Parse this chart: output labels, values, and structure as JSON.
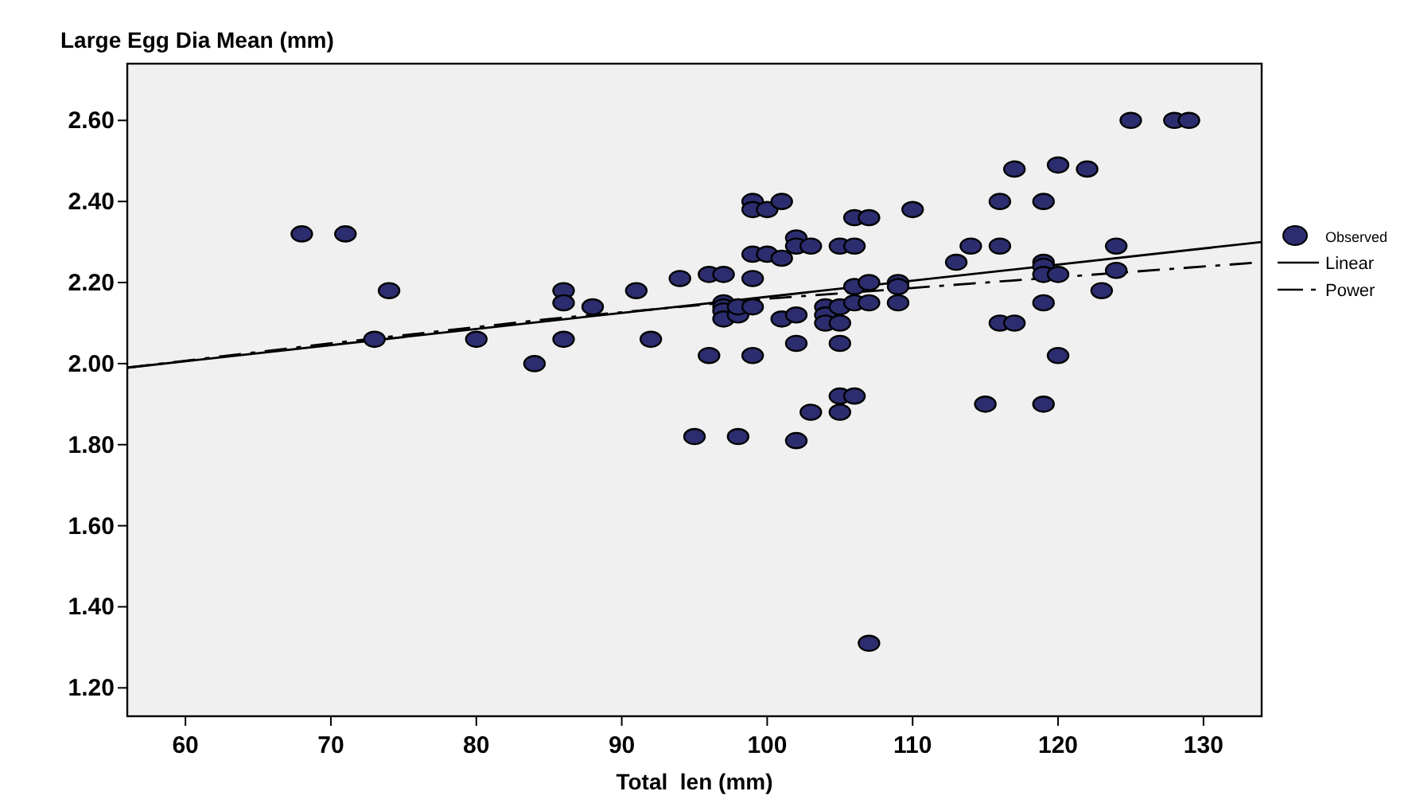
{
  "chart_data": {
    "type": "scatter",
    "title": "Large Egg Dia Mean (mm)",
    "xlabel": "Total  len (mm)",
    "xlim": [
      56,
      134
    ],
    "xticks": [
      60,
      70,
      80,
      90,
      100,
      110,
      120,
      130
    ],
    "ylim": [
      1.13,
      2.74
    ],
    "yticks": [
      {
        "value": 1.2,
        "label": "1.20"
      },
      {
        "value": 1.4,
        "label": "1.40"
      },
      {
        "value": 1.6,
        "label": "1.60"
      },
      {
        "value": 1.8,
        "label": "1.80"
      },
      {
        "value": 2.0,
        "label": "2.00"
      },
      {
        "value": 2.2,
        "label": "2.20"
      },
      {
        "value": 2.4,
        "label": "2.40"
      },
      {
        "value": 2.6,
        "label": "2.60"
      }
    ],
    "grid": false,
    "legend": "right",
    "series": [
      {
        "name": "Observed",
        "color": "#2b2d6e",
        "marker": "circle",
        "x": [
          68,
          71,
          74,
          73,
          80,
          84,
          86,
          86,
          86,
          88,
          91,
          92,
          94,
          96,
          96,
          97,
          97,
          97,
          97,
          97,
          98,
          98,
          99,
          99,
          99,
          99,
          99,
          99,
          100,
          100,
          101,
          101,
          101,
          102,
          102,
          102,
          102,
          103,
          103,
          104,
          104,
          104,
          105,
          105,
          105,
          105,
          105,
          105,
          106,
          106,
          106,
          106,
          106,
          107,
          107,
          107,
          107,
          109,
          109,
          109,
          110,
          113,
          114,
          115,
          116,
          116,
          116,
          117,
          117,
          119,
          119,
          119,
          119,
          119,
          119,
          120,
          120,
          120,
          122,
          123,
          124,
          124,
          125,
          128,
          129,
          95,
          98,
          102
        ],
        "values": [
          2.32,
          2.32,
          2.18,
          2.06,
          2.06,
          2.0,
          2.18,
          2.15,
          2.06,
          2.14,
          2.18,
          2.06,
          2.21,
          2.22,
          2.02,
          2.22,
          2.15,
          2.14,
          2.13,
          2.11,
          2.12,
          2.14,
          2.4,
          2.38,
          2.27,
          2.21,
          2.14,
          2.02,
          2.38,
          2.27,
          2.4,
          2.26,
          2.11,
          2.31,
          2.29,
          2.12,
          2.05,
          2.29,
          1.88,
          2.14,
          2.12,
          2.1,
          2.29,
          2.14,
          2.1,
          2.05,
          1.92,
          1.88,
          2.36,
          2.29,
          2.19,
          2.15,
          1.92,
          2.36,
          2.2,
          2.15,
          1.31,
          2.2,
          2.19,
          2.15,
          2.38,
          2.25,
          2.29,
          1.9,
          2.4,
          2.29,
          2.1,
          2.48,
          2.1,
          2.4,
          2.25,
          2.24,
          2.22,
          2.15,
          1.9,
          2.49,
          2.22,
          2.02,
          2.48,
          2.18,
          2.29,
          2.23,
          2.6,
          2.6,
          2.6,
          1.82,
          1.82,
          1.81
        ]
      },
      {
        "name": "Linear",
        "type": "line",
        "color": "#000000",
        "line_style": "solid",
        "marker": "none",
        "x": [
          56,
          134
        ],
        "values": [
          1.99,
          2.3
        ]
      },
      {
        "name": "Power",
        "type": "line",
        "color": "#000000",
        "line_style": "dashed",
        "marker": "none",
        "x": [
          56,
          70,
          85,
          100,
          115,
          134
        ],
        "values": [
          1.99,
          2.05,
          2.11,
          2.16,
          2.2,
          2.25
        ]
      }
    ]
  }
}
